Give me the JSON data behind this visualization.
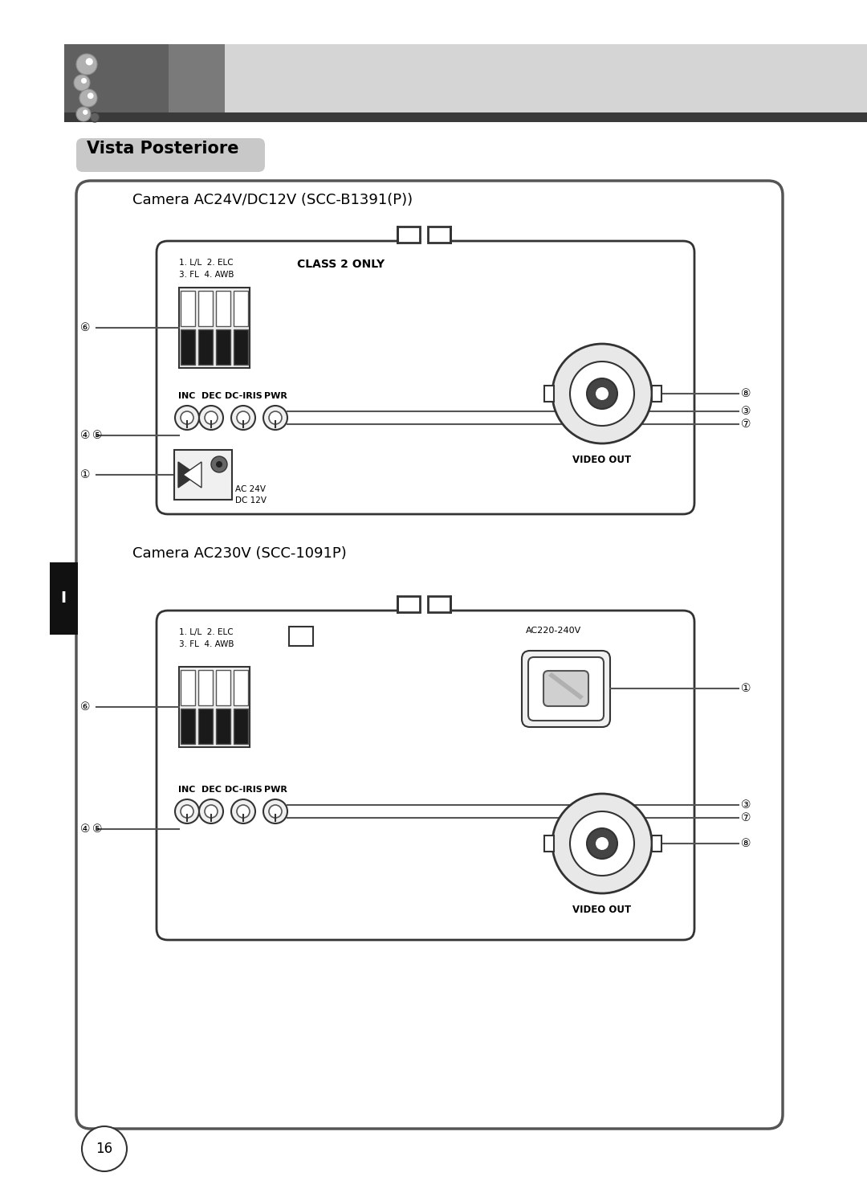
{
  "bg_color": "#ffffff",
  "title_label": "Vista Posteriore",
  "title_bg": "#c8c8c8",
  "camera1_title": "Camera AC24V/DC12V (SCC-B1391(P))",
  "camera2_title": "Camera AC230V (SCC-1091P)",
  "page_number": "16",
  "tab_label": "I",
  "tab_color": "#111111",
  "tab_text_color": "#ffffff",
  "panel_ec": "#444444",
  "line_color": "#555555"
}
